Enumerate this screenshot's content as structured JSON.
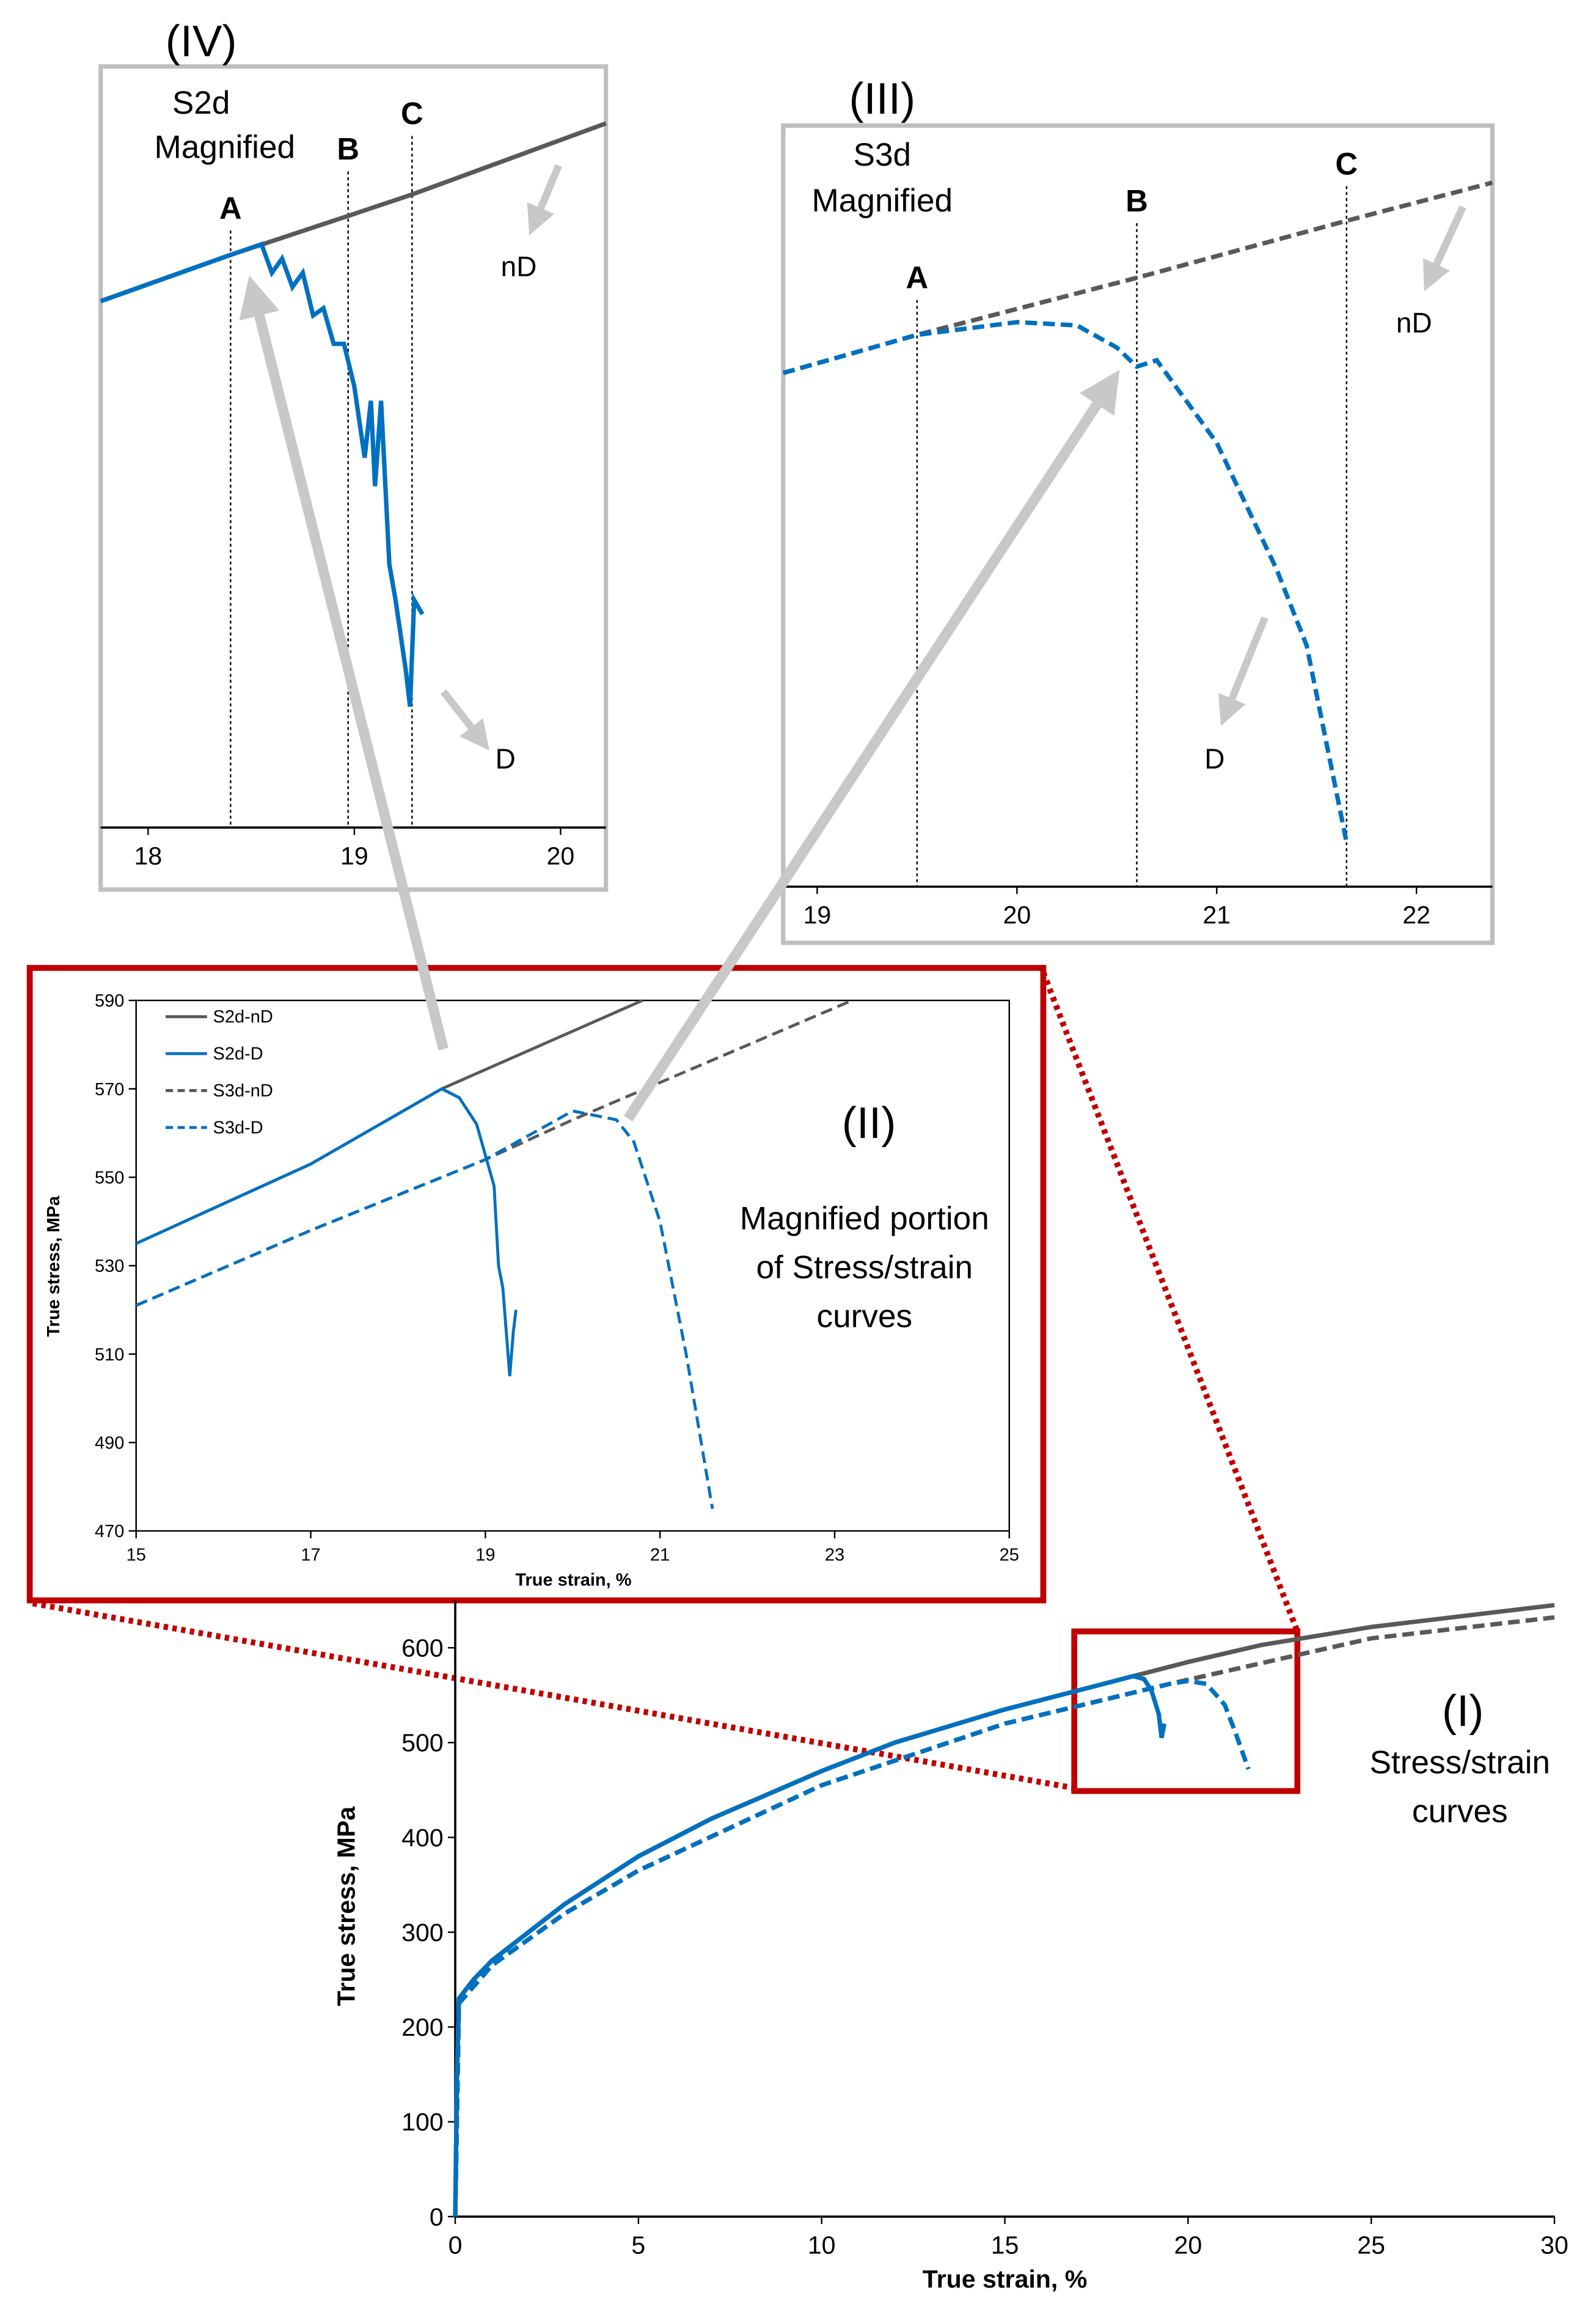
{
  "chart_data": [
    {
      "type": "line",
      "xlabel": "True strain, %",
      "ylabel": "True stress, MPa",
      "xlim": [
        0,
        30
      ],
      "xticks": [
        0,
        5,
        10,
        15,
        20,
        25,
        30
      ],
      "ylim": [
        0,
        650
      ],
      "yticks": [
        0,
        100,
        200,
        300,
        400,
        500,
        600
      ],
      "annotations": [
        "(I)",
        "Stress/strain",
        "curves"
      ],
      "series": [
        {
          "color": "#595959",
          "style": "solid",
          "x": [
            0,
            0.05,
            0.1,
            0.5,
            1,
            2,
            3,
            5,
            7,
            10,
            12,
            15,
            18.5,
            20,
            22,
            25,
            30
          ],
          "values": [
            0,
            150,
            230,
            250,
            270,
            300,
            330,
            380,
            420,
            470,
            500,
            535,
            570,
            585,
            603,
            622,
            645
          ]
        },
        {
          "color": "#0070c0",
          "style": "solid",
          "x": [
            0,
            0.05,
            0.1,
            0.5,
            1,
            2,
            3,
            5,
            7,
            10,
            12,
            15,
            18.5,
            18.8,
            19,
            19.2,
            19.28,
            19.35
          ],
          "values": [
            0,
            150,
            230,
            250,
            270,
            300,
            330,
            380,
            420,
            470,
            500,
            535,
            570,
            567,
            555,
            530,
            505,
            520
          ]
        },
        {
          "color": "#595959",
          "style": "dashed",
          "x": [
            0,
            0.1,
            1,
            3,
            5,
            10,
            15,
            19.5,
            25,
            30
          ],
          "values": [
            0,
            225,
            265,
            320,
            365,
            455,
            520,
            562,
            610,
            632
          ]
        },
        {
          "color": "#0070c0",
          "style": "dashed",
          "x": [
            0,
            0.1,
            1,
            3,
            5,
            10,
            15,
            19.5,
            20,
            20.5,
            21,
            21.3,
            21.65
          ],
          "values": [
            0,
            225,
            265,
            320,
            365,
            455,
            520,
            562,
            565,
            562,
            540,
            510,
            472
          ]
        }
      ]
    },
    {
      "type": "line",
      "xlabel": "True strain, %",
      "ylabel": "True stress, MPa",
      "xlim": [
        15,
        25
      ],
      "xticks": [
        15,
        17,
        19,
        21,
        23,
        25
      ],
      "ylim": [
        470,
        590
      ],
      "yticks": [
        470,
        490,
        510,
        530,
        550,
        570,
        590
      ],
      "legend": "upper left",
      "annotations": [
        "(II)",
        "Magnified portion",
        "of Stress/strain",
        "curves"
      ],
      "series": [
        {
          "name": "S2d-nD",
          "color": "#595959",
          "style": "solid",
          "x": [
            15,
            17,
            18.5,
            20.8
          ],
          "values": [
            535,
            553,
            570,
            590
          ]
        },
        {
          "name": "S2d-D",
          "color": "#0070c0",
          "style": "solid",
          "x": [
            15,
            17,
            18.5,
            18.7,
            18.9,
            19,
            19.1,
            19.15,
            19.2,
            19.28,
            19.32,
            19.35
          ],
          "values": [
            535,
            553,
            570,
            568,
            562,
            555,
            548,
            530,
            525,
            505,
            515,
            520
          ]
        },
        {
          "name": "S3d-nD",
          "color": "#595959",
          "style": "dashed",
          "x": [
            15,
            17,
            19,
            20,
            23.2
          ],
          "values": [
            521,
            538,
            554,
            563,
            590
          ]
        },
        {
          "name": "S3d-D",
          "color": "#0070c0",
          "style": "dashed",
          "x": [
            15,
            17,
            19,
            20,
            20.5,
            20.7,
            21,
            21.3,
            21.6
          ],
          "values": [
            521,
            538,
            554,
            565,
            563,
            558,
            540,
            510,
            475
          ]
        }
      ]
    },
    {
      "type": "line",
      "xlim": [
        18.83,
        22.38
      ],
      "xticks": [
        19,
        20,
        21,
        22
      ],
      "ylim": [
        470,
        590
      ],
      "annotations": [
        "(III)",
        "S3d",
        "Magnified",
        "nD",
        "D"
      ],
      "markers": [
        {
          "label": "A",
          "x": 19.5
        },
        {
          "label": "B",
          "x": 20.6
        },
        {
          "label": "C",
          "x": 21.65
        }
      ],
      "series": [
        {
          "color": "#595959",
          "style": "dashed",
          "x": [
            18.83,
            19.5,
            20.6,
            21.65,
            22.38
          ],
          "values": [
            551,
            557,
            566,
            575,
            581
          ]
        },
        {
          "color": "#0070c0",
          "style": "dashed",
          "x": [
            18.83,
            19.5,
            20,
            20.3,
            20.5,
            20.6,
            20.7,
            21,
            21.3,
            21.45,
            21.65
          ],
          "values": [
            551,
            557,
            559,
            558.5,
            555,
            552,
            553,
            540,
            520,
            508,
            477
          ]
        }
      ]
    },
    {
      "type": "line",
      "xlim": [
        17.77,
        20.22
      ],
      "xticks": [
        18,
        19,
        20
      ],
      "ylim": [
        488,
        595
      ],
      "annotations": [
        "(IV)",
        "S2d",
        "Magnified",
        "nD",
        "D"
      ],
      "markers": [
        {
          "label": "A",
          "x": 18.4
        },
        {
          "label": "B",
          "x": 18.97
        },
        {
          "label": "C",
          "x": 19.28
        }
      ],
      "series": [
        {
          "color": "#595959",
          "style": "solid",
          "x": [
            17.77,
            18.4,
            18.97,
            19.28,
            20.22
          ],
          "values": [
            562,
            568.5,
            574,
            577,
            587
          ]
        },
        {
          "color": "#0070c0",
          "style": "solid",
          "x": [
            17.77,
            18.4,
            18.55,
            18.6,
            18.65,
            18.7,
            18.75,
            18.8,
            18.85,
            18.9,
            18.95,
            19,
            19.05,
            19.08,
            19.1,
            19.13,
            19.17,
            19.2,
            19.25,
            19.27,
            19.29,
            19.33
          ],
          "values": [
            562,
            568.5,
            570,
            566,
            568,
            564,
            566,
            560,
            561,
            556,
            556,
            550,
            540,
            548,
            536,
            548,
            525,
            520,
            510,
            505,
            520,
            518
          ]
        }
      ]
    }
  ]
}
